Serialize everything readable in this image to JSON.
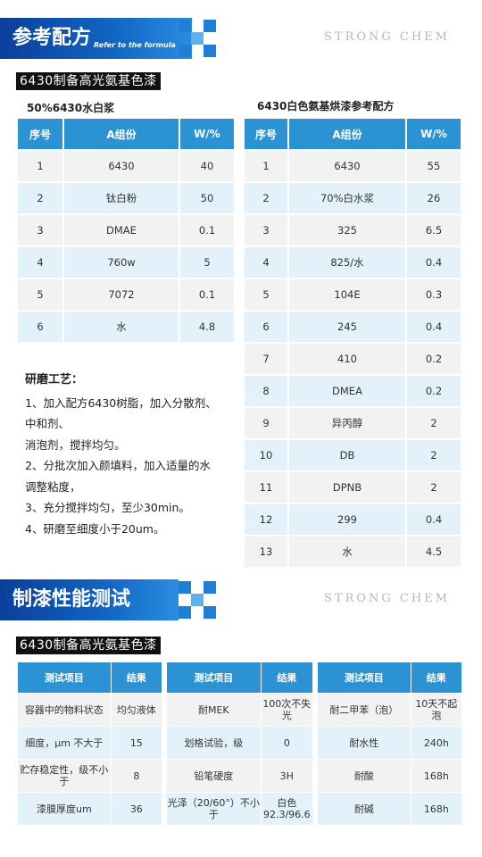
{
  "section1": {
    "title": "参考配方",
    "subtitle": "Refer to the formula",
    "brand": "STRONG CHEM",
    "label": "6430制备高光氨基色漆"
  },
  "table_left": {
    "caption": "50%6430水白浆",
    "headers": [
      "序号",
      "A组份",
      "W/%"
    ],
    "rows": [
      [
        "1",
        "6430",
        "40"
      ],
      [
        "2",
        "钛白粉",
        "50"
      ],
      [
        "3",
        "DMAE",
        "0.1"
      ],
      [
        "4",
        "760w",
        "5"
      ],
      [
        "5",
        "7072",
        "0.1"
      ],
      [
        "6",
        "水",
        "4.8"
      ]
    ]
  },
  "table_right": {
    "caption": "6430白色氨基烘漆参考配方",
    "headers": [
      "序号",
      "A组份",
      "W/%"
    ],
    "rows": [
      [
        "1",
        "6430",
        "55"
      ],
      [
        "2",
        "70%白水浆",
        "26"
      ],
      [
        "3",
        "325",
        "6.5"
      ],
      [
        "4",
        "825/水",
        "0.4"
      ],
      [
        "5",
        "104E",
        "0.3"
      ],
      [
        "6",
        "245",
        "0.4"
      ],
      [
        "7",
        "410",
        "0.2"
      ],
      [
        "8",
        "DMEA",
        "0.2"
      ],
      [
        "9",
        "异丙醇",
        "2"
      ],
      [
        "10",
        "DB",
        "2"
      ],
      [
        "11",
        "DPNB",
        "2"
      ],
      [
        "12",
        "299",
        "0.4"
      ],
      [
        "13",
        "水",
        "4.5"
      ]
    ]
  },
  "process": {
    "heading": "研磨工艺：",
    "lines": [
      "1、加入配方6430树脂，加入分散剂、",
      "中和剂、",
      "消泡剂，搅拌均匀。",
      "2、分批次加入颜填料，加入适量的水",
      "调整粘度，",
      "3、充分搅拌均匀，至少30min。",
      "4、研磨至细度小于20um。"
    ]
  },
  "section2": {
    "title": "制漆性能测试",
    "brand": "STRONG CHEM",
    "label": "6430制备高光氨基色漆"
  },
  "perf_tables": [
    {
      "headers": [
        "测试项目",
        "结果"
      ],
      "rows": [
        [
          "容器中的物料状态",
          "均匀液体"
        ],
        [
          "细度，μm 不大于",
          "15"
        ],
        [
          "贮存稳定性，级不小于",
          "8"
        ],
        [
          "漆膜厚度um",
          "36"
        ]
      ]
    },
    {
      "headers": [
        "测试项目",
        "结果"
      ],
      "rows": [
        [
          "耐MEK",
          "100次不失光"
        ],
        [
          "划格试验，级",
          "0"
        ],
        [
          "铅笔硬度",
          "3H"
        ],
        [
          "光泽（20/60°）不小于",
          "白色92.3/96.6"
        ]
      ]
    },
    {
      "headers": [
        "测试项目",
        "结果"
      ],
      "rows": [
        [
          "耐二甲苯（泡）",
          "10天不起泡"
        ],
        [
          "耐水性",
          "240h"
        ],
        [
          "耐酸",
          "168h"
        ],
        [
          "耐碱",
          "168h"
        ]
      ]
    }
  ]
}
